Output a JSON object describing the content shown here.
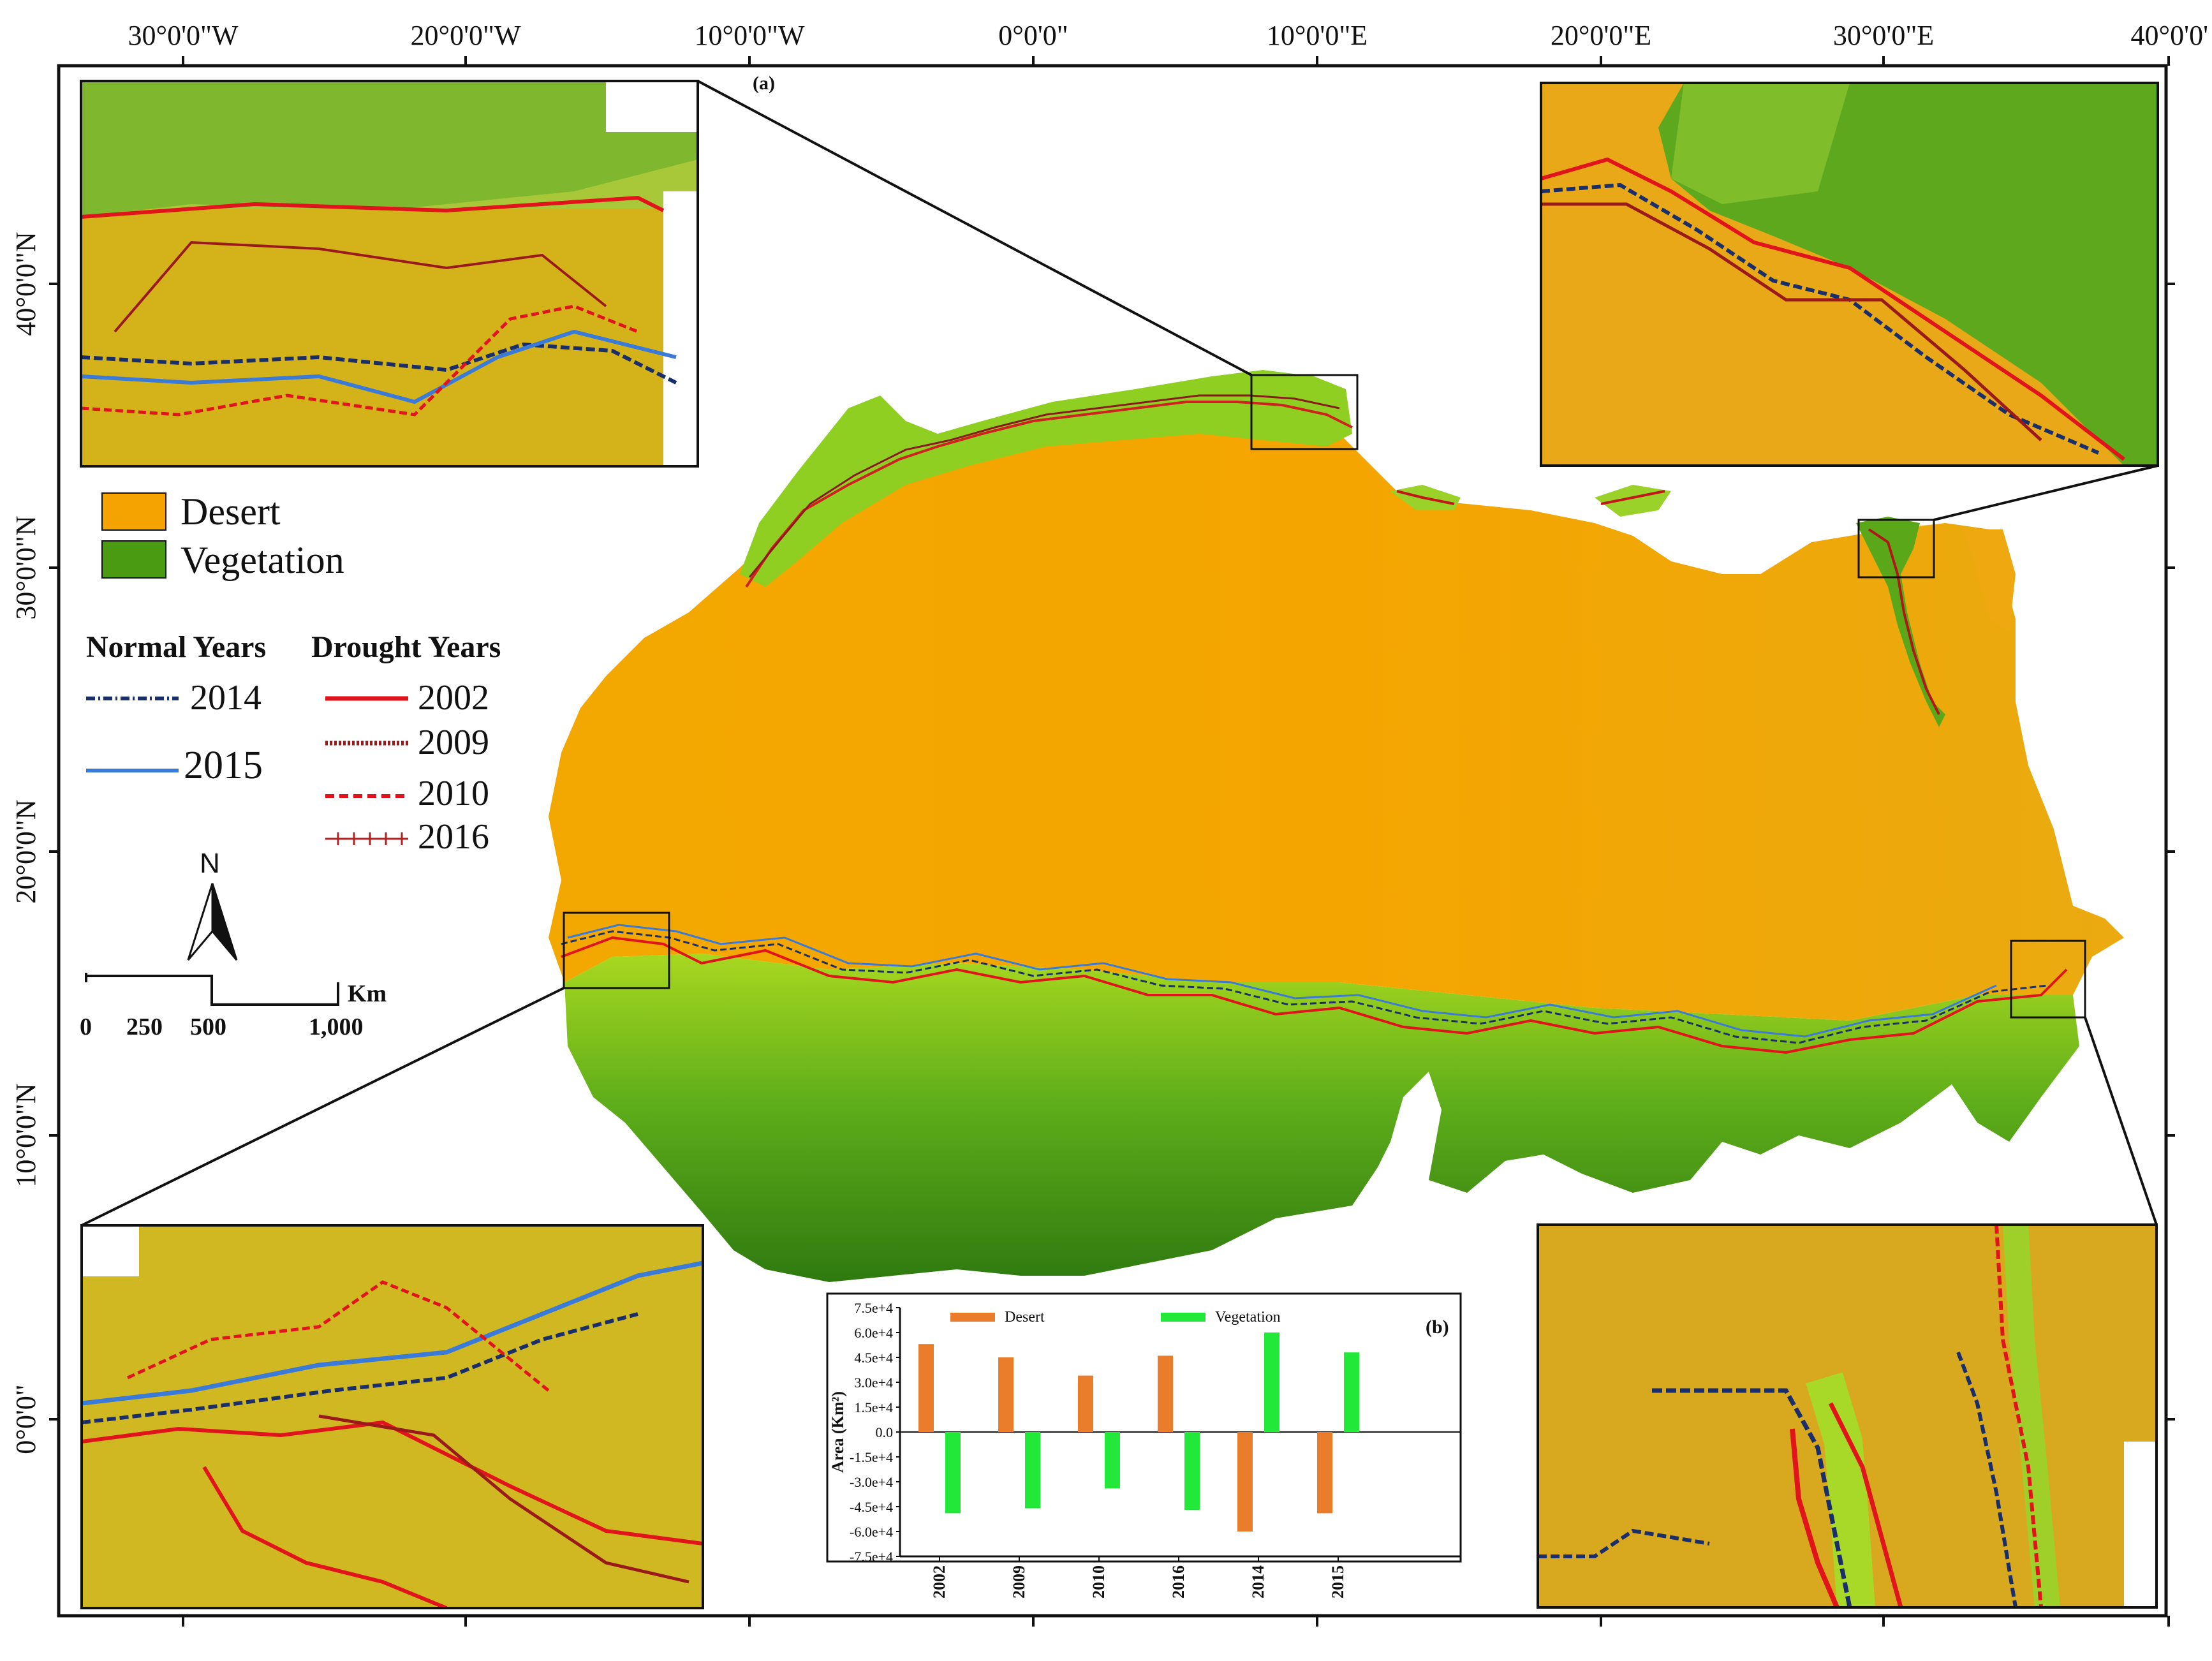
{
  "panel_a_label": "(a)",
  "panel_b_label": "(b)",
  "top_ticks": [
    "30°0'0\"W",
    "20°0'0\"W",
    "10°0'0\"W",
    "0°0'0\"",
    "10°0'0\"E",
    "20°0'0\"E",
    "30°0'0\"E",
    "40°0'0'"
  ],
  "left_ticks": [
    "40°0'0\"N",
    "30°0'0\"N",
    "20°0'0\"N",
    "10°0'0\"N",
    "0°0'0\""
  ],
  "legend": {
    "classes": [
      {
        "label": "Desert",
        "color": "#f5a300"
      },
      {
        "label": "Vegetation",
        "color": "#4a9a12"
      }
    ],
    "normal_heading": "Normal Years",
    "drought_heading": "Drought Years",
    "normal_years": [
      {
        "label": "2014",
        "color": "#1a2f6a",
        "style": "dash-dot"
      },
      {
        "label": "2015",
        "color": "#3a7ad8",
        "style": "solid"
      }
    ],
    "drought_years": [
      {
        "label": "2002",
        "color": "#e0141a",
        "style": "solid"
      },
      {
        "label": "2009",
        "color": "#9a1a1a",
        "style": "dotted"
      },
      {
        "label": "2010",
        "color": "#e0141a",
        "style": "dashed"
      },
      {
        "label": "2016",
        "color": "#b02020",
        "style": "tick"
      }
    ]
  },
  "north_arrow": {
    "label": "N"
  },
  "scale_bar": {
    "unit": "Km",
    "labels": [
      "0",
      "250",
      "500",
      "1,000"
    ]
  },
  "chart_data": {
    "type": "bar",
    "categories": [
      "2002",
      "2009",
      "2010",
      "2016",
      "2014",
      "2015"
    ],
    "series": [
      {
        "name": "Desert",
        "color": "#ea7d2c",
        "values": [
          53000,
          45000,
          34000,
          46000,
          -60000,
          -49000
        ]
      },
      {
        "name": "Vegetation",
        "color": "#22e83a",
        "values": [
          -49000,
          -46000,
          -34000,
          -47000,
          60000,
          48000
        ]
      }
    ],
    "ylabel": "Area (Km²)",
    "ylim": [
      -75000,
      75000
    ],
    "yticks": [
      "7.5e+4",
      "6.0e+4",
      "4.5e+4",
      "3.0e+4",
      "1.5e+4",
      "0.0",
      "-1.5e+4",
      "-3.0e+4",
      "-4.5e+4",
      "-6.0e+4",
      "-7.5e+4"
    ],
    "legend_position": "top"
  }
}
